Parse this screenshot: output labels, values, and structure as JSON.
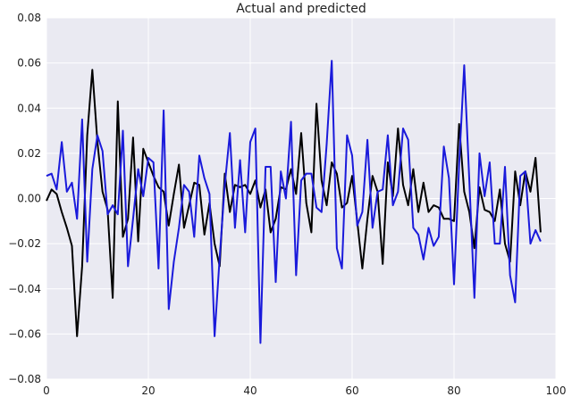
{
  "chart_data": {
    "type": "line",
    "title": "Actual and predicted",
    "xlabel": "",
    "ylabel": "",
    "xlim": [
      0,
      100
    ],
    "ylim": [
      -0.08,
      0.08
    ],
    "grid": true,
    "x_ticks": [
      0,
      20,
      40,
      60,
      80,
      100
    ],
    "x_tick_labels": [
      "0",
      "20",
      "40",
      "60",
      "80",
      "100"
    ],
    "y_ticks": [
      0.08,
      0.06,
      0.04,
      0.02,
      0.0,
      -0.02,
      -0.04,
      -0.06,
      -0.08
    ],
    "y_tick_labels": [
      "0.08",
      "0.06",
      "0.04",
      "0.02",
      "0.00",
      "−0.02",
      "−0.04",
      "−0.06",
      "−0.08"
    ],
    "colors": {
      "plot_background": "#eaeaf2",
      "grid": "#ffffff"
    },
    "series": [
      {
        "color": "#000000",
        "x": [
          0,
          1,
          2,
          3,
          4,
          5,
          6,
          7,
          8,
          9,
          10,
          11,
          12,
          13,
          14,
          15,
          16,
          17,
          18,
          19,
          20,
          21,
          22,
          23,
          24,
          25,
          26,
          27,
          28,
          29,
          30,
          31,
          32,
          33,
          34,
          35,
          36,
          37,
          38,
          39,
          40,
          41,
          42,
          43,
          44,
          45,
          46,
          47,
          48,
          49,
          50,
          51,
          52,
          53,
          54,
          55,
          56,
          57,
          58,
          59,
          60,
          61,
          62,
          63,
          64,
          65,
          66,
          67,
          68,
          69,
          70,
          71,
          72,
          73,
          74,
          75,
          76,
          77,
          78,
          79,
          80,
          81,
          82,
          83,
          84,
          85,
          86,
          87,
          88,
          89,
          90,
          91,
          92,
          93,
          94,
          95,
          96,
          97
        ],
        "values": [
          -0.001,
          0.004,
          0.002,
          -0.006,
          -0.013,
          -0.021,
          -0.061,
          -0.03,
          0.028,
          0.057,
          0.025,
          0.003,
          -0.005,
          -0.044,
          0.043,
          -0.017,
          -0.009,
          0.027,
          -0.019,
          0.022,
          0.016,
          0.01,
          0.005,
          0.003,
          -0.012,
          0.002,
          0.015,
          -0.013,
          -0.003,
          0.007,
          0.006,
          -0.016,
          -0.002,
          -0.02,
          -0.03,
          0.011,
          -0.006,
          0.006,
          0.005,
          0.006,
          0.002,
          0.008,
          -0.004,
          0.004,
          -0.015,
          -0.009,
          0.005,
          0.004,
          0.013,
          0.002,
          0.029,
          -0.002,
          -0.015,
          0.042,
          0.008,
          -0.003,
          0.016,
          0.011,
          -0.004,
          -0.002,
          0.01,
          -0.01,
          -0.031,
          -0.009,
          0.01,
          0.003,
          -0.029,
          0.016,
          0.001,
          0.031,
          0.006,
          -0.003,
          0.013,
          -0.006,
          0.007,
          -0.006,
          -0.003,
          -0.004,
          -0.009,
          -0.009,
          -0.01,
          0.033,
          0.003,
          -0.006,
          -0.022,
          0.005,
          -0.005,
          -0.006,
          -0.01,
          0.004,
          -0.02,
          -0.028,
          0.012,
          -0.003,
          0.012,
          0.003,
          0.018,
          -0.015
        ]
      },
      {
        "color": "#1a1adb",
        "x": [
          0,
          1,
          2,
          3,
          4,
          5,
          6,
          7,
          8,
          9,
          10,
          11,
          12,
          13,
          14,
          15,
          16,
          17,
          18,
          19,
          20,
          21,
          22,
          23,
          24,
          25,
          26,
          27,
          28,
          29,
          30,
          31,
          32,
          33,
          34,
          35,
          36,
          37,
          38,
          39,
          40,
          41,
          42,
          43,
          44,
          45,
          46,
          47,
          48,
          49,
          50,
          51,
          52,
          53,
          54,
          55,
          56,
          57,
          58,
          59,
          60,
          61,
          62,
          63,
          64,
          65,
          66,
          67,
          68,
          69,
          70,
          71,
          72,
          73,
          74,
          75,
          76,
          77,
          78,
          79,
          80,
          81,
          82,
          83,
          84,
          85,
          86,
          87,
          88,
          89,
          90,
          91,
          92,
          93,
          94,
          95,
          96,
          97
        ],
        "values": [
          0.01,
          0.011,
          0.004,
          0.025,
          0.003,
          0.007,
          -0.009,
          0.035,
          -0.028,
          0.013,
          0.028,
          0.021,
          -0.007,
          -0.003,
          -0.007,
          0.03,
          -0.03,
          -0.009,
          0.013,
          0.001,
          0.018,
          0.016,
          -0.031,
          0.039,
          -0.049,
          -0.028,
          -0.013,
          0.006,
          0.003,
          -0.017,
          0.019,
          0.009,
          0.002,
          -0.061,
          -0.026,
          0.006,
          0.029,
          -0.013,
          0.017,
          -0.015,
          0.025,
          0.031,
          -0.064,
          0.014,
          0.014,
          -0.037,
          0.012,
          0.0,
          0.034,
          -0.034,
          0.008,
          0.011,
          0.011,
          -0.004,
          -0.006,
          0.024,
          0.061,
          -0.022,
          -0.031,
          0.028,
          0.019,
          -0.012,
          -0.006,
          0.026,
          -0.013,
          0.003,
          0.004,
          0.028,
          -0.003,
          0.003,
          0.031,
          0.026,
          -0.013,
          -0.016,
          -0.027,
          -0.013,
          -0.021,
          -0.017,
          0.023,
          0.009,
          -0.038,
          0.015,
          0.059,
          0.008,
          -0.044,
          0.02,
          0.001,
          0.016,
          -0.02,
          -0.02,
          0.014,
          -0.034,
          -0.046,
          0.01,
          0.012,
          -0.02,
          -0.014,
          -0.019
        ]
      }
    ]
  }
}
